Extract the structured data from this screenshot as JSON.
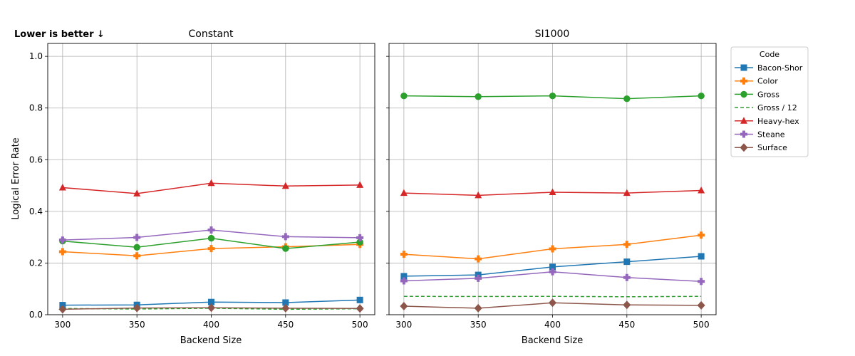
{
  "note": "Lower is better ↓",
  "ylabel": "Logical Error Rate",
  "chart_data": [
    {
      "type": "line",
      "title": "Constant",
      "xlabel": "Backend Size",
      "ylabel": "Logical Error Rate",
      "x": [
        300,
        350,
        400,
        450,
        500
      ],
      "xticks": [
        "300",
        "350",
        "400",
        "450",
        "500"
      ],
      "yticks": [
        "0.0",
        "0.2",
        "0.4",
        "0.6",
        "0.8",
        "1.0"
      ],
      "ylim": [
        0,
        1.05
      ],
      "grid": true,
      "series": [
        {
          "name": "Bacon-Shor",
          "values": [
            0.037,
            0.038,
            0.049,
            0.047,
            0.057
          ]
        },
        {
          "name": "Color",
          "values": [
            0.244,
            0.228,
            0.256,
            0.263,
            0.272
          ]
        },
        {
          "name": "Gross",
          "values": [
            0.285,
            0.261,
            0.296,
            0.256,
            0.281
          ]
        },
        {
          "name": "Gross / 12",
          "values": [
            0.024,
            0.022,
            0.025,
            0.021,
            0.023
          ]
        },
        {
          "name": "Heavy-hex",
          "values": [
            0.492,
            0.469,
            0.509,
            0.498,
            0.502
          ]
        },
        {
          "name": "Steane",
          "values": [
            0.289,
            0.299,
            0.328,
            0.302,
            0.298
          ]
        },
        {
          "name": "Surface",
          "values": [
            0.021,
            0.026,
            0.027,
            0.025,
            0.024
          ]
        }
      ]
    },
    {
      "type": "line",
      "title": "SI1000",
      "xlabel": "Backend Size",
      "x": [
        300,
        350,
        400,
        450,
        500
      ],
      "xticks": [
        "300",
        "350",
        "400",
        "450",
        "500"
      ],
      "ylim": [
        0,
        1.05
      ],
      "grid": true,
      "series": [
        {
          "name": "Bacon-Shor",
          "values": [
            0.149,
            0.154,
            0.185,
            0.205,
            0.226
          ]
        },
        {
          "name": "Color",
          "values": [
            0.234,
            0.216,
            0.255,
            0.272,
            0.308
          ]
        },
        {
          "name": "Gross",
          "values": [
            0.847,
            0.844,
            0.847,
            0.836,
            0.847
          ]
        },
        {
          "name": "Gross / 12",
          "values": [
            0.071,
            0.0705,
            0.071,
            0.0695,
            0.071
          ]
        },
        {
          "name": "Heavy-hex",
          "values": [
            0.471,
            0.462,
            0.474,
            0.471,
            0.481
          ]
        },
        {
          "name": "Steane",
          "values": [
            0.131,
            0.141,
            0.166,
            0.144,
            0.129
          ]
        },
        {
          "name": "Surface",
          "values": [
            0.033,
            0.025,
            0.046,
            0.038,
            0.036
          ]
        }
      ]
    }
  ],
  "legend": {
    "title": "Code",
    "placement": "right",
    "entries": [
      {
        "name": "Bacon-Shor",
        "color": "#1f77b4",
        "marker": "square",
        "dash": false
      },
      {
        "name": "Color",
        "color": "#ff7f0e",
        "marker": "cross",
        "dash": false
      },
      {
        "name": "Gross",
        "color": "#2ca02c",
        "marker": "circle",
        "dash": false
      },
      {
        "name": "Gross / 12",
        "color": "#2ca02c",
        "marker": "none",
        "dash": true
      },
      {
        "name": "Heavy-hex",
        "color": "#d62728",
        "marker": "triangle",
        "dash": false
      },
      {
        "name": "Steane",
        "color": "#9467bd",
        "marker": "cross",
        "dash": false
      },
      {
        "name": "Surface",
        "color": "#8c564b",
        "marker": "diamond",
        "dash": false
      }
    ]
  }
}
